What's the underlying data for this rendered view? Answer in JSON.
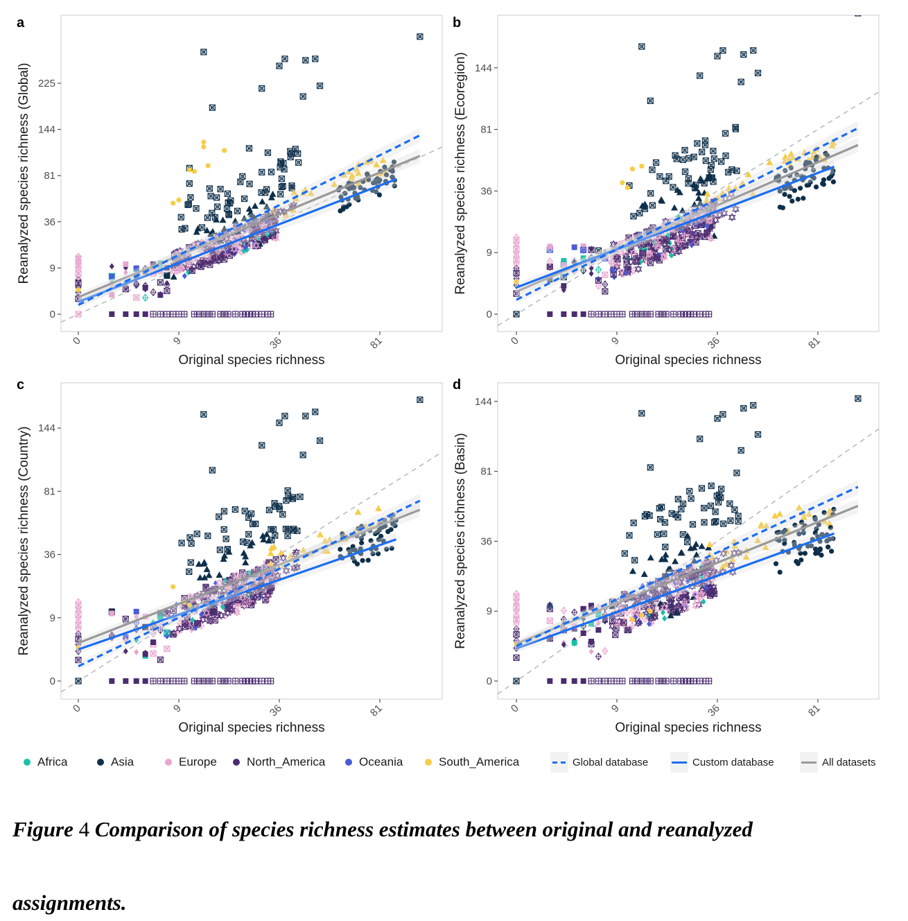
{
  "figure": {
    "caption_prefix": "Figure",
    "caption_number": "4",
    "caption_line1": "Comparison of species richness estimates between original and reanalyzed",
    "caption_line2": "assignments."
  },
  "legend": {
    "continents": [
      {
        "label": "Africa",
        "color": "#1bbfa8"
      },
      {
        "label": "Asia",
        "color": "#0e2f4a"
      },
      {
        "label": "Europe",
        "color": "#e8a6cf"
      },
      {
        "label": "North_America",
        "color": "#4b2c6f"
      },
      {
        "label": "Oceania",
        "color": "#4a5bd6"
      },
      {
        "label": "South_America",
        "color": "#f6cd4a"
      }
    ],
    "lines": [
      {
        "label": "Global database",
        "color": "#1a6ef2",
        "style": "dashed"
      },
      {
        "label": "Custom database",
        "color": "#1a6ef2",
        "style": "solid"
      },
      {
        "label": "All datasets",
        "color": "#999999",
        "style": "solid"
      }
    ]
  },
  "chart_data": [
    {
      "type": "scatter",
      "panel": "a",
      "xlabel": "Original species richness",
      "ylabel": "Reanalyzed species richness (Global)",
      "scale": "sqrt",
      "x_ticks": [
        "0",
        "9",
        "36",
        "81"
      ],
      "y_ticks": [
        "0",
        "9",
        "36",
        "81",
        "144",
        "225"
      ],
      "xlim": [
        0,
        110
      ],
      "ylim": [
        0,
        340
      ],
      "grid": false,
      "reference_line": "y = x (grey dashed)",
      "fits": {
        "global_database": {
          "intercept": 0.6,
          "slope": 1.08
        },
        "custom_database": {
          "intercept": 0.8,
          "slope": 0.84
        },
        "all_datasets": {
          "intercept": 1.1,
          "slope": 0.9
        }
      },
      "asia_outliers": [
        [
          14,
          290
        ],
        [
          16,
          180
        ],
        [
          30,
          215
        ],
        [
          36,
          260
        ],
        [
          38,
          275
        ],
        [
          45,
          200
        ],
        [
          46,
          272
        ],
        [
          50,
          275
        ],
        [
          52,
          220
        ],
        [
          104,
          325
        ],
        [
          40,
          112
        ],
        [
          42,
          115
        ],
        [
          32,
          110
        ],
        [
          26,
          116
        ],
        [
          30,
          85
        ],
        [
          24,
          80
        ],
        [
          11,
          90
        ],
        [
          11,
          72
        ],
        [
          18,
          66
        ]
      ],
      "south_america_outliers": [
        [
          14,
          125
        ],
        [
          14,
          118
        ],
        [
          19,
          113
        ],
        [
          15,
          93
        ],
        [
          11,
          88
        ],
        [
          12,
          86
        ],
        [
          8,
          52
        ],
        [
          9,
          55
        ]
      ]
    },
    {
      "type": "scatter",
      "panel": "b",
      "xlabel": "Original species richness",
      "ylabel": "Reanalyzed species richness (Ecoregion)",
      "scale": "sqrt",
      "x_ticks": [
        "0",
        "9",
        "36",
        "81"
      ],
      "y_ticks": [
        "0",
        "9",
        "36",
        "81",
        "144"
      ],
      "xlim": [
        0,
        110
      ],
      "ylim": [
        0,
        230
      ],
      "grid": false,
      "reference_line": "y = x (grey dashed)",
      "fits": {
        "global_database": {
          "intercept": 0.7,
          "slope": 0.82
        },
        "custom_database": {
          "intercept": 1.3,
          "slope": 0.62
        },
        "all_datasets": {
          "intercept": 1.1,
          "slope": 0.7
        }
      },
      "asia_outliers": [
        [
          14,
          170
        ],
        [
          16,
          108
        ],
        [
          30,
          135
        ],
        [
          36,
          158
        ],
        [
          38,
          165
        ],
        [
          45,
          128
        ],
        [
          46,
          160
        ],
        [
          50,
          165
        ],
        [
          52,
          138
        ],
        [
          104,
          215
        ]
      ],
      "south_america_outliers": [
        [
          14,
          52
        ],
        [
          12,
          50
        ],
        [
          10,
          41
        ],
        [
          11,
          38
        ]
      ]
    },
    {
      "type": "scatter",
      "panel": "c",
      "xlabel": "Original species richness",
      "ylabel": "Reanalyzed species richness (Country)",
      "scale": "sqrt",
      "x_ticks": [
        "0",
        "9",
        "36",
        "81"
      ],
      "y_ticks": [
        "0",
        "9",
        "36",
        "81",
        "144"
      ],
      "xlim": [
        0,
        110
      ],
      "ylim": [
        0,
        200
      ],
      "grid": false,
      "reference_line": "y = x (grey dashed)",
      "fits": {
        "global_database": {
          "intercept": 0.7,
          "slope": 0.77
        },
        "custom_database": {
          "intercept": 1.5,
          "slope": 0.55
        },
        "all_datasets": {
          "intercept": 1.8,
          "slope": 0.62
        }
      },
      "asia_outliers": [
        [
          14,
          160
        ],
        [
          16,
          100
        ],
        [
          30,
          125
        ],
        [
          36,
          150
        ],
        [
          38,
          158
        ],
        [
          45,
          115
        ],
        [
          46,
          158
        ],
        [
          50,
          163
        ],
        [
          52,
          130
        ],
        [
          104,
          178
        ]
      ],
      "south_america_outliers": [
        [
          8,
          20
        ],
        [
          10,
          14
        ],
        [
          11,
          13
        ]
      ]
    },
    {
      "type": "scatter",
      "panel": "d",
      "xlabel": "Original species richness",
      "ylabel": "Reanalyzed species richness (Basin)",
      "scale": "sqrt",
      "x_ticks": [
        "0",
        "9",
        "36",
        "81"
      ],
      "y_ticks": [
        "0",
        "9",
        "36",
        "81",
        "144"
      ],
      "xlim": [
        0,
        110
      ],
      "ylim": [
        0,
        175
      ],
      "grid": false,
      "reference_line": "y = x (grey dashed)",
      "fits": {
        "global_database": {
          "intercept": 1.5,
          "slope": 0.67
        },
        "custom_database": {
          "intercept": 1.4,
          "slope": 0.52
        },
        "all_datasets": {
          "intercept": 1.6,
          "slope": 0.58
        }
      },
      "asia_outliers": [
        [
          14,
          132
        ],
        [
          16,
          84
        ],
        [
          30,
          108
        ],
        [
          36,
          127
        ],
        [
          38,
          131
        ],
        [
          45,
          98
        ],
        [
          46,
          137
        ],
        [
          50,
          140
        ],
        [
          52,
          112
        ],
        [
          104,
          147
        ]
      ],
      "south_america_outliers": [
        [
          14,
          8
        ],
        [
          12,
          7
        ],
        [
          16,
          9
        ]
      ]
    }
  ]
}
